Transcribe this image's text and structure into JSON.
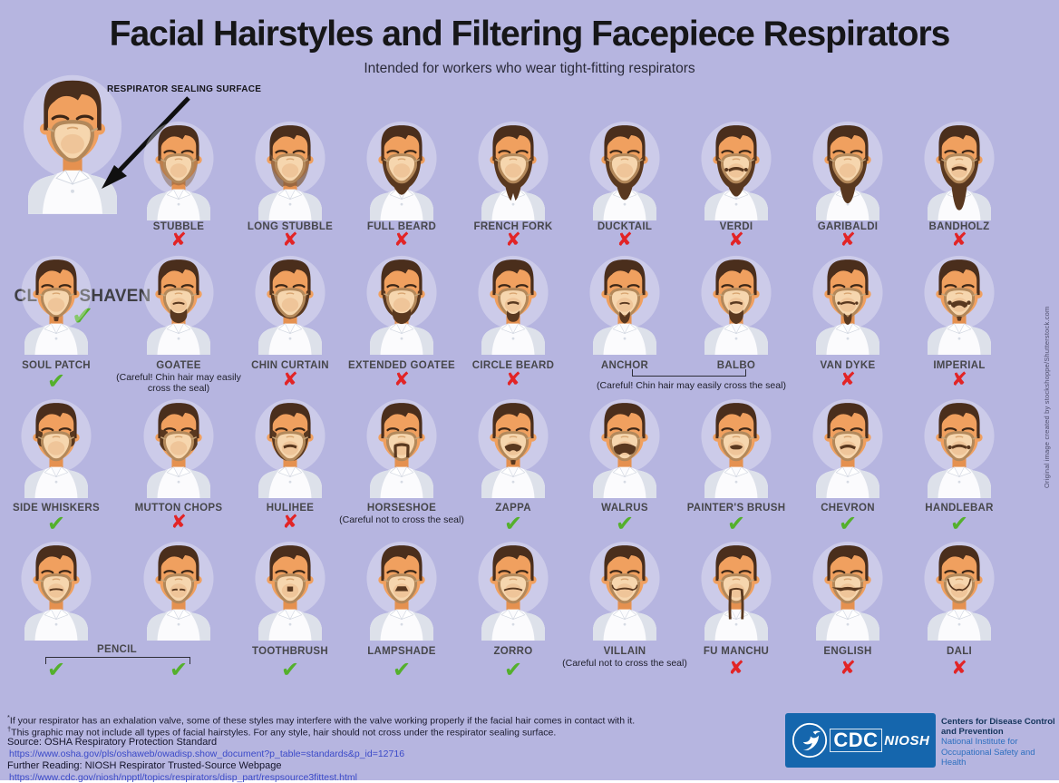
{
  "page": {
    "bg": "#b6b5e0"
  },
  "header": {
    "title": "Facial Hairstyles and Filtering Facepiece Respirators",
    "subtitle": "Intended for workers who wear tight-fitting respirators"
  },
  "annotation": "RESPIRATOR SEALING SURFACE",
  "hero": {
    "label": "CLEAN SHAVEN",
    "mark": "check",
    "style": "clean"
  },
  "rows": [
    {
      "items": [
        {
          "label": "STUBBLE",
          "mark": "x",
          "style": "stubble"
        },
        {
          "label": "LONG STUBBLE",
          "mark": "x",
          "style": "long_stubble"
        },
        {
          "label": "FULL BEARD",
          "mark": "x",
          "style": "full_beard"
        },
        {
          "label": "FRENCH FORK",
          "mark": "x",
          "style": "french_fork"
        },
        {
          "label": "DUCKTAIL",
          "mark": "x",
          "style": "ducktail"
        },
        {
          "label": "VERDI",
          "mark": "x",
          "style": "verdi"
        },
        {
          "label": "GARIBALDI",
          "mark": "x",
          "style": "garibaldi"
        },
        {
          "label": "BANDHOLZ",
          "mark": "x",
          "style": "bandholz"
        }
      ]
    },
    {
      "items": [
        {
          "label": "SOUL PATCH",
          "mark": "check",
          "style": "soul_patch"
        },
        {
          "label": "GOATEE",
          "mark": "none",
          "note": "(Careful! Chin hair may easily cross the seal)",
          "style": "goatee"
        },
        {
          "label": "CHIN CURTAIN",
          "mark": "x",
          "style": "chin_curtain"
        },
        {
          "label": "EXTENDED GOATEE",
          "mark": "x",
          "style": "extended_goatee"
        },
        {
          "label": "CIRCLE BEARD",
          "mark": "x",
          "style": "circle_beard"
        },
        {
          "label": "ANCHOR",
          "mark": "none",
          "style": "anchor"
        },
        {
          "label": "BALBO",
          "mark": "none",
          "style": "balbo"
        },
        {
          "label": "VAN DYKE",
          "mark": "x",
          "style": "van_dyke"
        },
        {
          "label": "IMPERIAL",
          "mark": "x",
          "style": "imperial"
        }
      ]
    },
    {
      "items": [
        {
          "label": "SIDE WHISKERS",
          "mark": "check",
          "style": "side_whiskers"
        },
        {
          "label": "MUTTON CHOPS",
          "mark": "x",
          "style": "mutton_chops"
        },
        {
          "label": "HULIHEE",
          "mark": "x",
          "style": "hulihee"
        },
        {
          "label": "HORSESHOE",
          "mark": "none",
          "note": "(Careful not to cross the seal)",
          "style": "horseshoe"
        },
        {
          "label": "ZAPPA",
          "mark": "check",
          "style": "zappa"
        },
        {
          "label": "WALRUS",
          "mark": "check",
          "style": "walrus"
        },
        {
          "label": "PAINTER'S BRUSH",
          "mark": "check",
          "style": "painters_brush"
        },
        {
          "label": "CHEVRON",
          "mark": "check",
          "style": "chevron"
        },
        {
          "label": "HANDLEBAR",
          "mark": "check",
          "style": "handlebar"
        }
      ]
    },
    {
      "items": [
        {
          "label": "",
          "mark": "check",
          "style": "pencil_a"
        },
        {
          "label": "",
          "mark": "check",
          "style": "pencil_b"
        },
        {
          "label": "TOOTHBRUSH",
          "mark": "check",
          "style": "toothbrush"
        },
        {
          "label": "LAMPSHADE",
          "mark": "check",
          "style": "lampshade"
        },
        {
          "label": "ZORRO",
          "mark": "check",
          "style": "zorro"
        },
        {
          "label": "VILLAIN",
          "mark": "none",
          "note": "(Careful not to cross the seal)",
          "style": "villain"
        },
        {
          "label": "FU MANCHU",
          "mark": "x",
          "style": "fu_manchu"
        },
        {
          "label": "ENGLISH",
          "mark": "x",
          "style": "english"
        },
        {
          "label": "DALI",
          "mark": "x",
          "style": "dali"
        }
      ]
    }
  ],
  "groups": [
    {
      "label": "",
      "note": "(Careful! Chin hair may easily cross the seal)"
    },
    {
      "label": "PENCIL",
      "note": ""
    }
  ],
  "marks": {
    "check": "✔",
    "x": "✘",
    "check_color": "#54b02c",
    "x_color": "#e22426"
  },
  "footnotes": [
    {
      "sup": "*",
      "text": "If your respirator has an exhalation valve, some of these styles may interfere with the valve working properly if the facial hair comes in contact with it."
    },
    {
      "sup": "†",
      "text": "This graphic may not include all types of facial hairstyles. For any style, hair should not cross under the respirator sealing surface."
    }
  ],
  "source": {
    "label": "Source: OSHA Respiratory Protection Standard",
    "url": "https://www.osha.gov/pls/oshaweb/owadisp.show_document?p_table=standards&p_id=12716"
  },
  "further": {
    "label": "Further Reading: NIOSH Respirator Trusted-Source Webpage",
    "url": "https://www.cdc.gov/niosh/npptl/topics/respirators/disp_part/respsource3fittest.html"
  },
  "logos": {
    "cdc": "CDC",
    "niosh": "NIOSH",
    "line1": "Centers for Disease Control and Prevention",
    "line2": "National Institute for Occupational Safety and Health"
  },
  "credit": "Original image created by stockshoppe/Shutterstock.com"
}
